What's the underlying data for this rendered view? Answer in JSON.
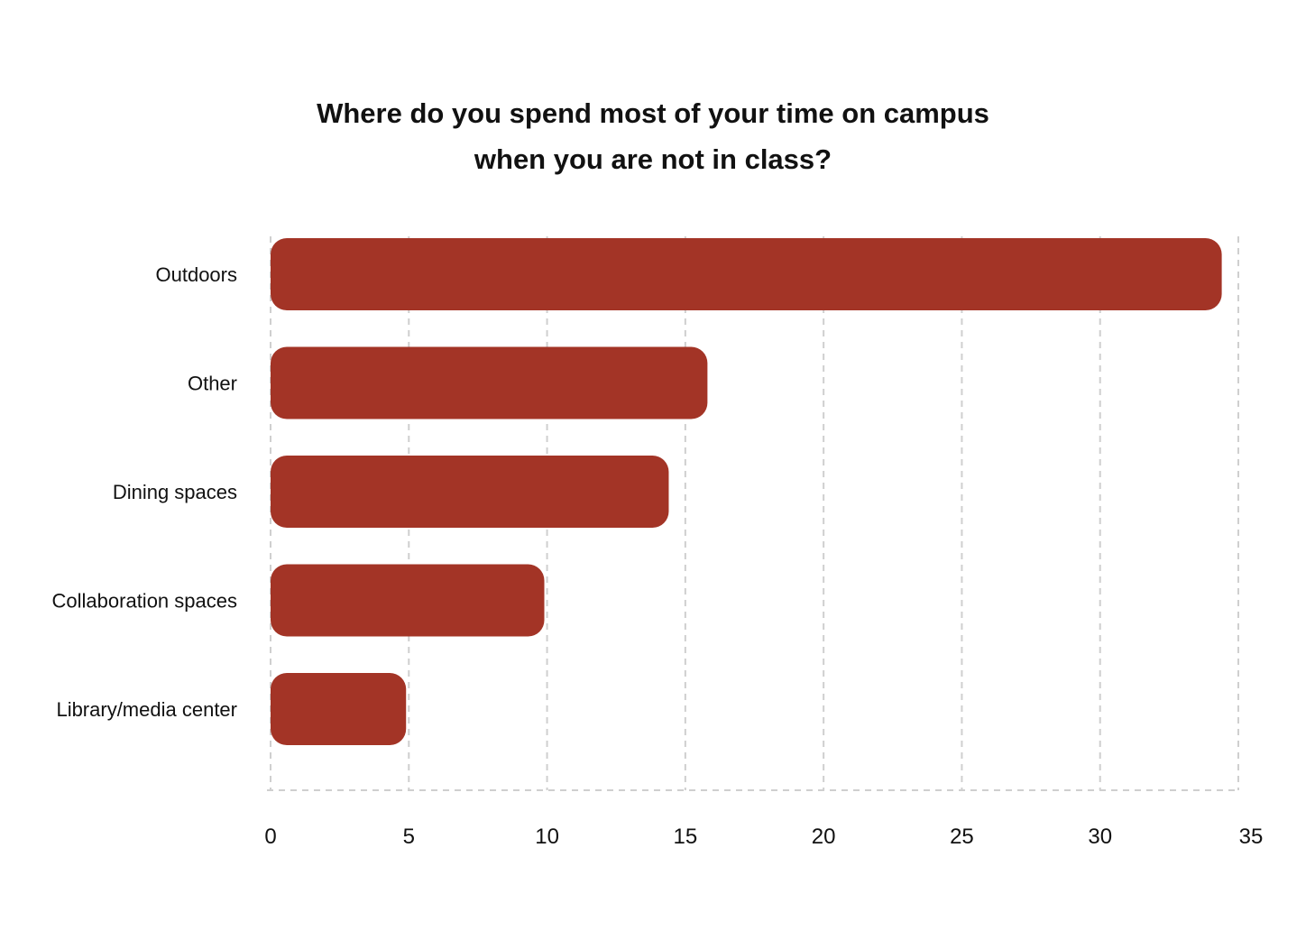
{
  "chart_data": {
    "type": "bar",
    "orientation": "horizontal",
    "title_lines": [
      "Where do you spend most of your time on campus",
      "when you are not in class?"
    ],
    "categories": [
      "Outdoors",
      "Other",
      "Dining spaces",
      "Collaboration spaces",
      "Library/media center"
    ],
    "values": [
      34.4,
      15.8,
      14.4,
      9.9,
      4.9
    ],
    "xlim": [
      0,
      35
    ],
    "xticks": [
      "0",
      "5",
      "10",
      "15",
      "20",
      "25",
      "30",
      "35"
    ],
    "grid": true,
    "bar_color": "#a33426",
    "grid_color": "#cfcfcf"
  }
}
